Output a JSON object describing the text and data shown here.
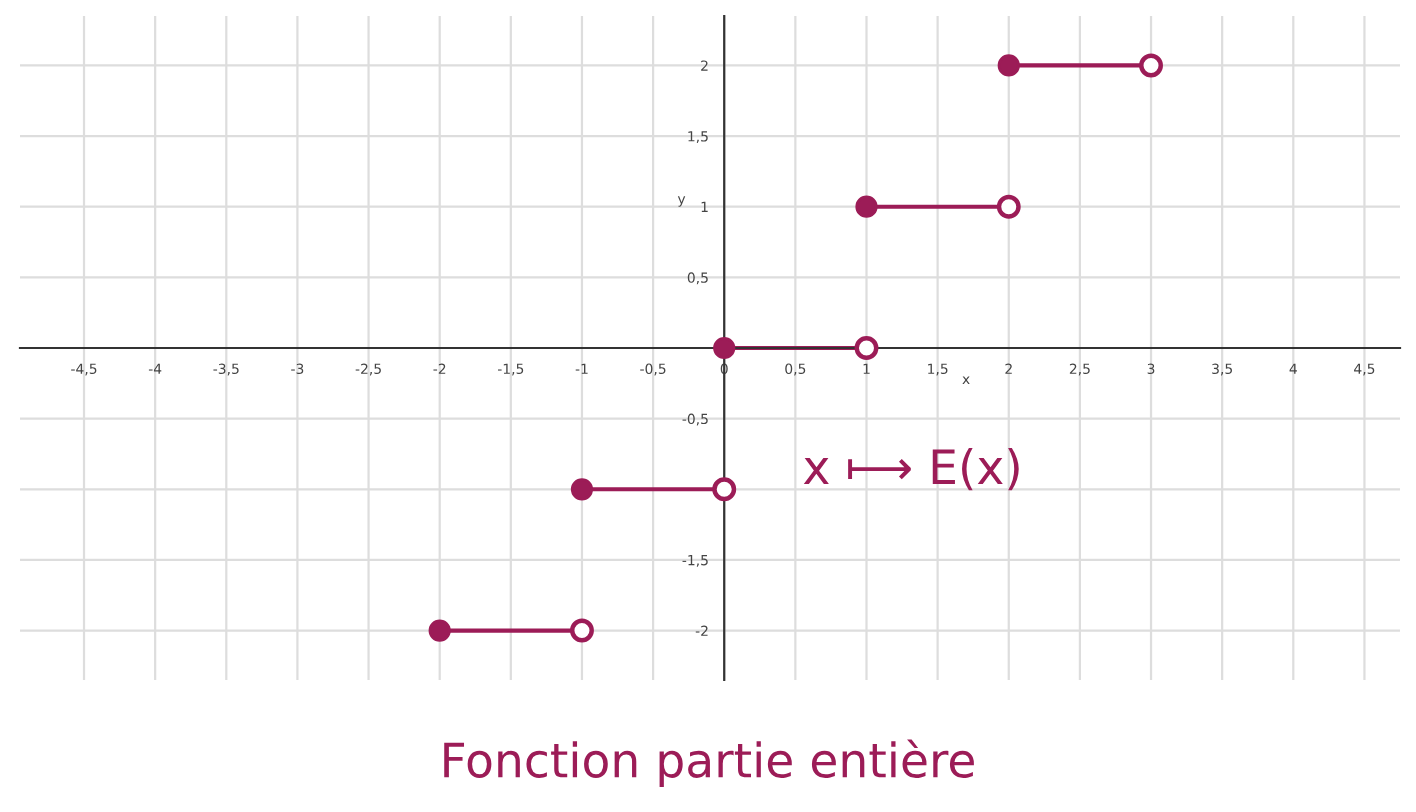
{
  "chart_data": {
    "type": "line",
    "title": "Fonction partie entière",
    "xlabel": "x",
    "ylabel": "y",
    "annotations": [
      "x ⟼ E(x)"
    ],
    "series": [
      {
        "color": "#9c1c57",
        "x": [
          -2,
          -1
        ],
        "values": [
          -2,
          -2
        ]
      },
      {
        "color": "#9c1c57",
        "x": [
          -1,
          0
        ],
        "values": [
          -1,
          -1
        ]
      },
      {
        "color": "#9c1c57",
        "x": [
          0,
          1
        ],
        "values": [
          0,
          0
        ]
      },
      {
        "color": "#9c1c57",
        "x": [
          1,
          2
        ],
        "values": [
          1,
          1
        ]
      },
      {
        "color": "#9c1c57",
        "x": [
          2,
          3
        ],
        "values": [
          2,
          2
        ]
      }
    ],
    "xlim": [
      -4.95,
      4.75
    ],
    "ylim": [
      -2.35,
      2.35
    ],
    "xticks": [
      {
        "value": -4.5,
        "label": "-4,5"
      },
      -4,
      {
        "value": -3.5,
        "label": "-3,5"
      },
      -3,
      {
        "value": -2.5,
        "label": "-2,5"
      },
      -2,
      {
        "value": -1.5,
        "label": "-1,5"
      },
      -1,
      {
        "value": -0.5,
        "label": "-0,5"
      },
      0,
      {
        "value": 0.5,
        "label": "0,5"
      },
      1,
      {
        "value": 1.5,
        "label": "1,5"
      },
      2,
      {
        "value": 2.5,
        "label": "2,5"
      },
      3,
      {
        "value": 3.5,
        "label": "3,5"
      },
      4,
      {
        "value": 4.5,
        "label": "4,5"
      }
    ],
    "yticks": [
      -2,
      {
        "value": -1.5,
        "label": "-1,5"
      },
      {
        "value": -1,
        "label": null
      },
      {
        "value": -0.5,
        "label": "-0,5"
      },
      {
        "value": 0,
        "label": null
      },
      {
        "value": 0.5,
        "label": "0,5"
      },
      1,
      {
        "value": 1.5,
        "label": "1,5"
      },
      2
    ],
    "grid": true,
    "marker": "circle",
    "line_style": "solid"
  }
}
